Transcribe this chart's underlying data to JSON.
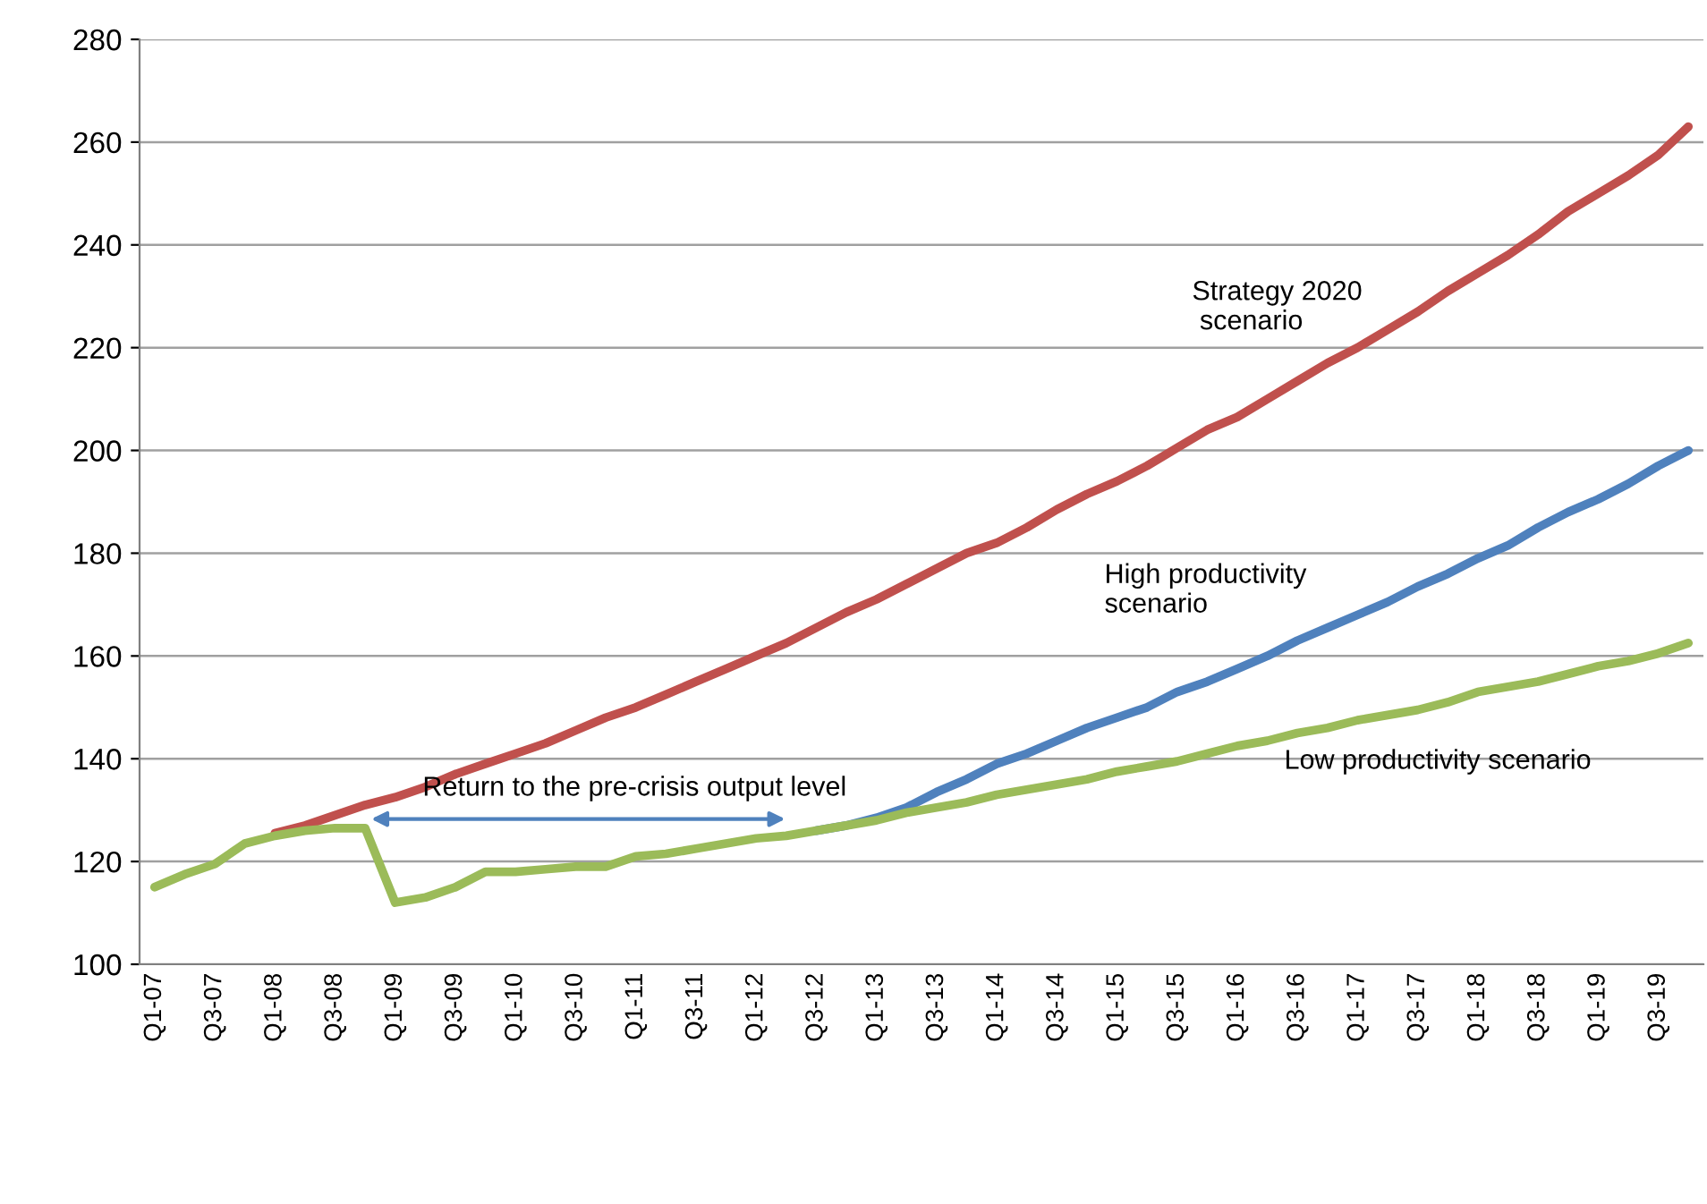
{
  "chart_data": {
    "type": "line",
    "categories": [
      "Q1-07",
      null,
      "Q3-07",
      null,
      "Q1-08",
      null,
      "Q3-08",
      null,
      "Q1-09",
      null,
      "Q3-09",
      null,
      "Q1-10",
      null,
      "Q3-10",
      null,
      "Q1-11",
      null,
      "Q3-11",
      null,
      "Q1-12",
      null,
      "Q3-12",
      null,
      "Q1-13",
      null,
      "Q3-13",
      null,
      "Q1-14",
      null,
      "Q3-14",
      null,
      "Q1-15",
      null,
      "Q3-15",
      null,
      "Q1-16",
      null,
      "Q3-16",
      null,
      "Q1-17",
      null,
      "Q3-17",
      null,
      "Q1-18",
      null,
      "Q3-18",
      null,
      "Q1-19",
      null,
      "Q3-19",
      null
    ],
    "series": [
      {
        "name": "Strategy 2020\n scenario",
        "color": "#c0504d",
        "values": [
          null,
          null,
          null,
          null,
          125.5,
          127,
          129,
          131,
          132.5,
          134.5,
          137,
          139,
          141,
          143,
          145.5,
          148,
          150,
          152.5,
          155,
          157.5,
          160,
          162.5,
          165.5,
          168.5,
          171,
          174,
          177,
          180,
          182,
          185,
          188.5,
          191.5,
          194,
          197,
          200.5,
          204,
          206.5,
          210,
          213.5,
          217,
          220,
          223.5,
          227,
          231,
          234.5,
          238,
          242,
          246.5,
          250,
          253.5,
          257.5,
          263
        ]
      },
      {
        "name": "High productivity\nscenario",
        "color": "#4f81bd",
        "values": [
          null,
          null,
          null,
          null,
          null,
          null,
          null,
          null,
          null,
          null,
          null,
          null,
          null,
          null,
          null,
          null,
          null,
          null,
          null,
          null,
          null,
          null,
          126,
          127,
          128.5,
          130.5,
          133.5,
          136,
          139,
          141,
          143.5,
          146,
          148,
          150,
          153,
          155,
          157.5,
          160,
          163,
          165.5,
          168,
          170.5,
          173.5,
          176,
          179,
          181.5,
          185,
          188,
          190.5,
          193.5,
          197,
          200
        ]
      },
      {
        "name": "Low productivity scenario",
        "color": "#9bbb59",
        "values": [
          115,
          117.5,
          119.5,
          123.5,
          125,
          126,
          126.5,
          126.5,
          112,
          113,
          115,
          118,
          118,
          118.5,
          119,
          119,
          121,
          121.5,
          122.5,
          123.5,
          124.5,
          125,
          126,
          127,
          128,
          129.5,
          130.5,
          131.5,
          133,
          134,
          135,
          136,
          137.5,
          138.5,
          139.5,
          141,
          142.5,
          143.5,
          145,
          146,
          147.5,
          148.5,
          149.5,
          151,
          153,
          154,
          155,
          156.5,
          158,
          159,
          160.5,
          162.5
        ]
      }
    ],
    "ylim": [
      100,
      280
    ],
    "yticks": [
      100,
      120,
      140,
      160,
      180,
      200,
      220,
      240,
      260,
      280
    ],
    "grid": "y",
    "legend": false,
    "marker": "none",
    "line_style": "solid",
    "annotations": [
      "Return to the pre-crisis output level"
    ]
  }
}
